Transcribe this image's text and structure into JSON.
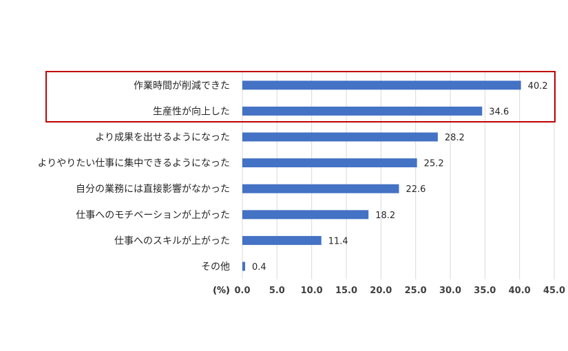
{
  "chart_data": {
    "type": "bar",
    "orientation": "horizontal",
    "categories": [
      "作業時間が削減できた",
      "生産性が向上した",
      "より成果を出せるようになった",
      "よりやりたい仕事に集中できるようになった",
      "自分の業務には直接影響がなかった",
      "仕事へのモチベーションが上がった",
      "仕事へのスキルが上がった",
      "その他"
    ],
    "values": [
      40.2,
      34.6,
      28.2,
      25.2,
      22.6,
      18.2,
      11.4,
      0.4
    ],
    "value_labels": [
      "40.2",
      "34.6",
      "28.2",
      "25.2",
      "22.6",
      "18.2",
      "11.4",
      "0.4"
    ],
    "xlim": [
      0,
      45
    ],
    "ticks": [
      "0.0",
      "5.0",
      "10.0",
      "15.0",
      "20.0",
      "25.0",
      "30.0",
      "35.0",
      "40.0",
      "45.0"
    ],
    "unit_label": "(%)",
    "grid": true,
    "highlighted_categories": [
      "作業時間が削減できた",
      "生産性が向上した"
    ],
    "colors": {
      "bar": "#4472c4",
      "grid": "#d9d9d9",
      "highlight_box": "#c00000"
    }
  }
}
